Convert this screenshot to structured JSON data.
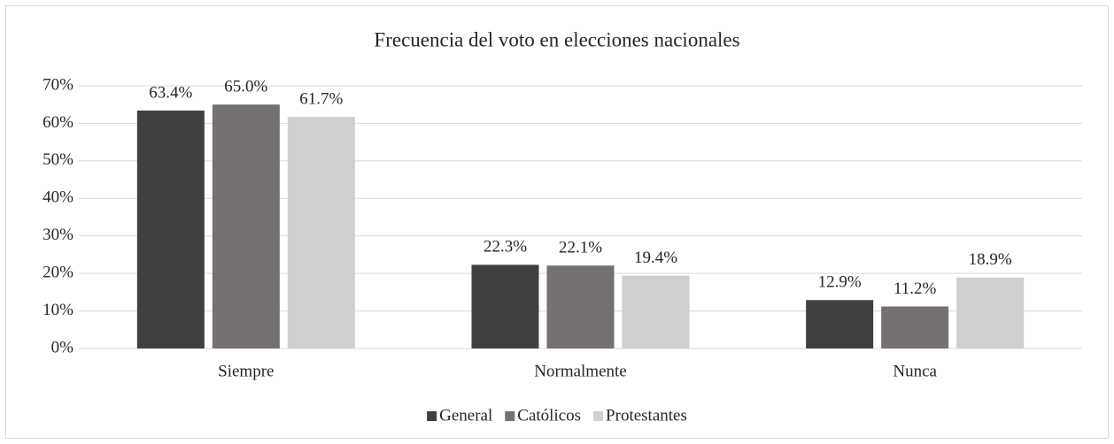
{
  "chart_data": {
    "type": "bar",
    "title": "Frecuencia del voto en elecciones nacionales",
    "categories": [
      "Siempre",
      "Normalmente",
      "Nunca"
    ],
    "series": [
      {
        "name": "General",
        "color": "#404040",
        "values": [
          63.4,
          22.3,
          12.9
        ],
        "value_labels": [
          "63.4%",
          "22.3%",
          "12.9%"
        ]
      },
      {
        "name": "Católicos",
        "color": "#767171",
        "values": [
          65.0,
          22.1,
          11.2
        ],
        "value_labels": [
          "65.0%",
          "22.1%",
          "11.2%"
        ]
      },
      {
        "name": "Protestantes",
        "color": "#d0cece",
        "values": [
          61.7,
          19.4,
          18.9
        ],
        "value_labels": [
          "61.7%",
          "19.4%",
          "18.9%"
        ]
      }
    ],
    "ylim": [
      0,
      70
    ],
    "yticks": [
      {
        "value": 0,
        "label": "0%"
      },
      {
        "value": 10,
        "label": "10%"
      },
      {
        "value": 20,
        "label": "20%"
      },
      {
        "value": 30,
        "label": "30%"
      },
      {
        "value": 40,
        "label": "40%"
      },
      {
        "value": 50,
        "label": "50%"
      },
      {
        "value": 60,
        "label": "60%"
      },
      {
        "value": 70,
        "label": "70%"
      }
    ],
    "grid": true,
    "legend": "bottom"
  }
}
